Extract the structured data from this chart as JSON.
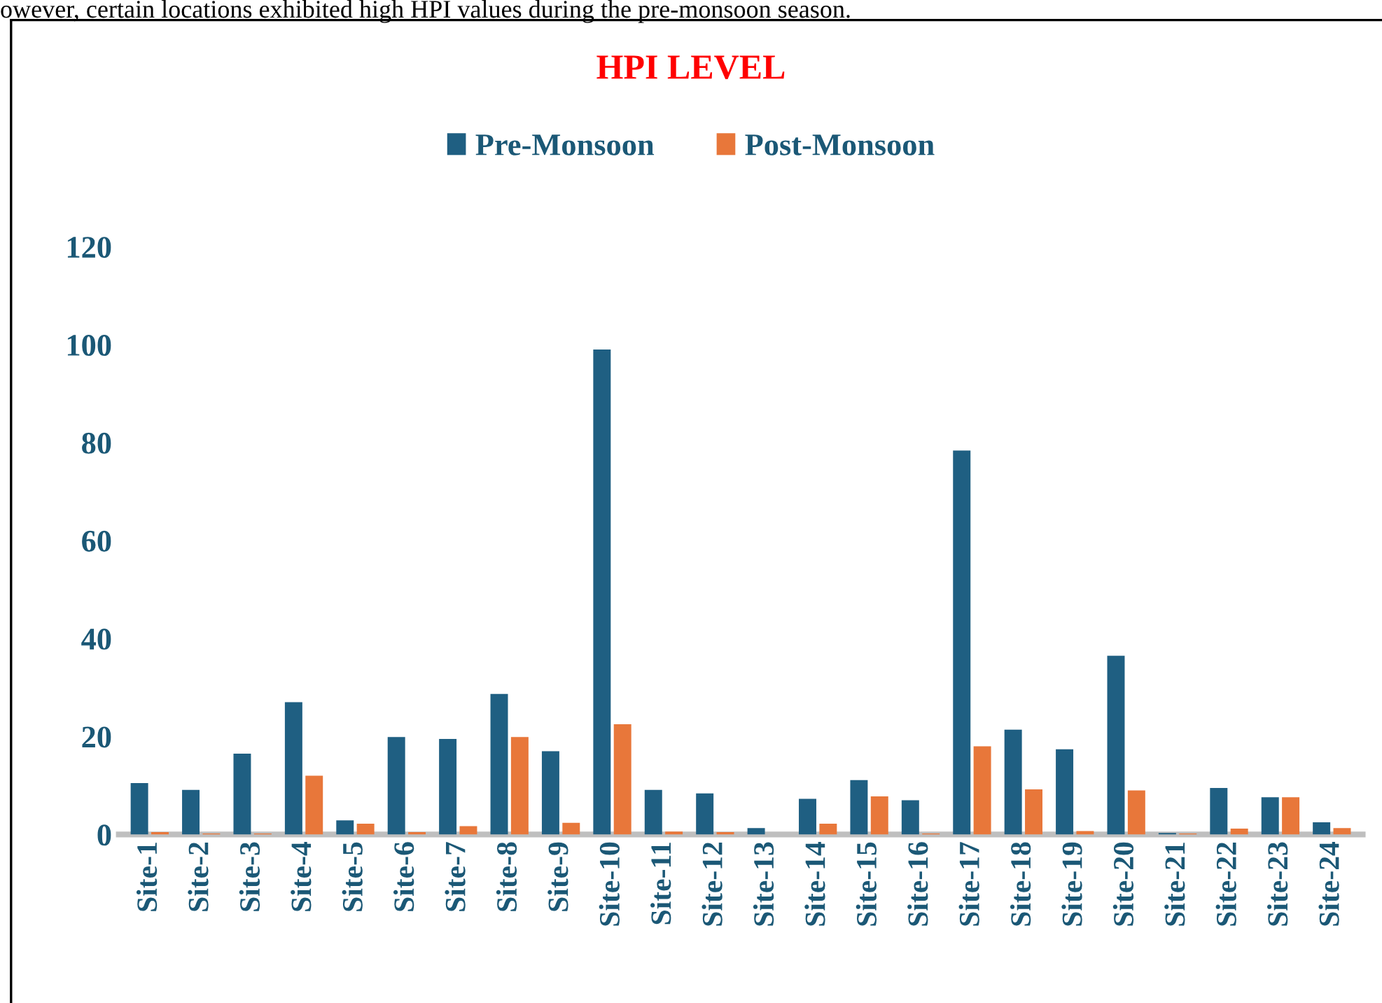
{
  "chart_data": {
    "type": "bar",
    "title": "HPI LEVEL",
    "annotations": [
      "owever, certain locations exhibited high HPI values during the pre-monsoon season."
    ],
    "categories": [
      "Site-1",
      "Site-2",
      "Site-3",
      "Site-4",
      "Site-5",
      "Site-6",
      "Site-7",
      "Site-8",
      "Site-9",
      "Site-10",
      "Site-11",
      "Site-12",
      "Site-13",
      "Site-14",
      "Site-15",
      "Site-16",
      "Site-17",
      "Site-18",
      "Site-19",
      "Site-20",
      "Site-21",
      "Site-22",
      "Site-23",
      "Site-24"
    ],
    "series": [
      {
        "name": "Pre-Monsoon",
        "color": "#1f5f82",
        "values": [
          10.5,
          9.1,
          16.5,
          27,
          2.9,
          19.9,
          19.5,
          28.7,
          17,
          99,
          9.1,
          8.4,
          1.3,
          7.3,
          11.1,
          7,
          78.4,
          21.4,
          17.4,
          36.5,
          0.3,
          9.5,
          7.6,
          2.5
        ]
      },
      {
        "name": "Post-Monsoon",
        "color": "#e8773a",
        "values": [
          0.5,
          0.2,
          0.2,
          12,
          2.2,
          0.5,
          1.7,
          19.9,
          2.4,
          22.5,
          0.6,
          0.5,
          0,
          2.2,
          7.8,
          0.2,
          18,
          9.2,
          0.7,
          9,
          0.2,
          1.2,
          7.6,
          1.3
        ]
      }
    ],
    "ylim": [
      0,
      120
    ],
    "yticks": [
      0,
      20,
      40,
      60,
      80,
      100,
      120
    ],
    "grid": false,
    "legend": "top"
  }
}
